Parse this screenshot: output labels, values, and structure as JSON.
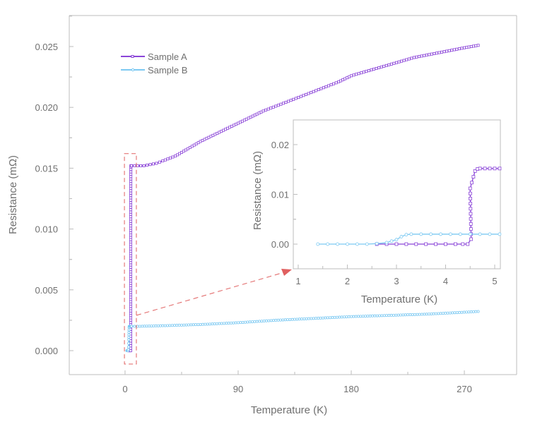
{
  "colors": {
    "sample_a": "#8b45d8",
    "sample_b": "#7cc9f2",
    "highlight": "#e06060",
    "axis": "#bdbdbd"
  },
  "chart_data": [
    {
      "type": "line",
      "name": "main",
      "xlabel": "Temperature (K)",
      "ylabel": "Resistance (mΩ)",
      "xlim": [
        -44.4,
        311.6
      ],
      "ylim": [
        -0.00197,
        0.02755
      ],
      "xticks": [
        0,
        90,
        180,
        270
      ],
      "xtick_labels": [
        "0",
        "90",
        "180",
        "270"
      ],
      "yticks": [
        0,
        0.005,
        0.01,
        0.015,
        0.02,
        0.025
      ],
      "ytick_labels": [
        "0.000",
        "0.005",
        "0.010",
        "0.015",
        "0.020",
        "0.025"
      ],
      "legend": {
        "position": "top-left",
        "entries": [
          "Sample A",
          "Sample B"
        ]
      },
      "series": [
        {
          "name": "Sample A",
          "marker": "square",
          "x": [
            10,
            15,
            20,
            25,
            30,
            40,
            50,
            60,
            70,
            80,
            90,
            100,
            110,
            120,
            130,
            140,
            150,
            160,
            170,
            180,
            190,
            200,
            210,
            220,
            230,
            240,
            250,
            260,
            270,
            281
          ],
          "y": [
            0.0152,
            0.0152,
            0.0153,
            0.0154,
            0.0156,
            0.016,
            0.0166,
            0.0172,
            0.0177,
            0.0182,
            0.0187,
            0.0192,
            0.0197,
            0.0201,
            0.0205,
            0.0209,
            0.0213,
            0.0217,
            0.0221,
            0.0226,
            0.0229,
            0.0232,
            0.0235,
            0.0238,
            0.0241,
            0.0243,
            0.0245,
            0.0247,
            0.0249,
            0.0251
          ]
        },
        {
          "name": "Sample B",
          "marker": "circle",
          "x": [
            10,
            30,
            60,
            90,
            120,
            150,
            180,
            210,
            240,
            281
          ],
          "y": [
            0.002,
            0.00205,
            0.00215,
            0.0023,
            0.0025,
            0.00265,
            0.0028,
            0.0029,
            0.003,
            0.00322
          ]
        }
      ],
      "highlight_region": {
        "x": [
          -0.5,
          9
        ],
        "y": [
          -0.0011,
          0.0162
        ]
      }
    },
    {
      "type": "line",
      "name": "inset",
      "xlabel": "Temperature (K)",
      "ylabel": "Resistance (mΩ)",
      "xlim": [
        0.9,
        5.115
      ],
      "ylim": [
        -0.00496,
        0.02496
      ],
      "xticks": [
        1,
        2,
        3,
        4,
        5
      ],
      "xtick_labels": [
        "1",
        "2",
        "3",
        "4",
        "5"
      ],
      "yticks": [
        0,
        0.01,
        0.02
      ],
      "ytick_labels": [
        "0.00",
        "0.01",
        "0.02"
      ],
      "series": [
        {
          "name": "Sample A",
          "marker": "square",
          "x": [
            2.6,
            2.8,
            3.0,
            3.2,
            3.4,
            3.6,
            3.8,
            4.0,
            4.2,
            4.35,
            4.45,
            4.52,
            4.5,
            4.6,
            4.65,
            4.7,
            4.8,
            4.9,
            5.0,
            5.1
          ],
          "y": [
            0,
            0,
            0,
            0,
            0,
            0,
            0,
            0,
            0,
            0,
            0,
            0.001,
            0.0112,
            0.0147,
            0.0151,
            0.0152,
            0.0152,
            0.0152,
            0.0152,
            0.0152
          ]
        },
        {
          "name": "Sample B",
          "marker": "circle",
          "x": [
            1.4,
            1.6,
            1.8,
            2.0,
            2.2,
            2.4,
            2.6,
            2.8,
            2.9,
            3.0,
            3.1,
            3.2,
            3.3,
            3.5,
            3.7,
            3.9,
            4.1,
            4.3,
            4.5,
            4.7,
            4.9,
            5.1
          ],
          "y": [
            0,
            0,
            0,
            0,
            0,
            0,
            0.0001,
            0.0003,
            0.0006,
            0.0009,
            0.0015,
            0.0019,
            0.002,
            0.002,
            0.002,
            0.002,
            0.002,
            0.002,
            0.002,
            0.002,
            0.002,
            0.002
          ]
        }
      ]
    }
  ]
}
